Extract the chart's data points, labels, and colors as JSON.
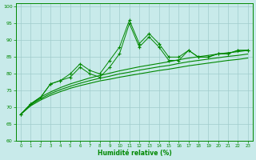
{
  "x": [
    0,
    1,
    2,
    3,
    4,
    5,
    6,
    7,
    8,
    9,
    10,
    11,
    12,
    13,
    14,
    15,
    16,
    17,
    18,
    19,
    20,
    21,
    22,
    23
  ],
  "line_jagged1": [
    68,
    71,
    73,
    77,
    78,
    80,
    83,
    81,
    80,
    84,
    88,
    96,
    89,
    92,
    89,
    85,
    85,
    87,
    85,
    85,
    86,
    86,
    87,
    87
  ],
  "line_jagged2": [
    68,
    71,
    73,
    77,
    78,
    79,
    82,
    80,
    79,
    82,
    86,
    95,
    88,
    91,
    88,
    84,
    84,
    87,
    85,
    85,
    86,
    86,
    87,
    87
  ],
  "smooth1_x": [
    0,
    1,
    2,
    3,
    4,
    5,
    6,
    7,
    8,
    9,
    10,
    11,
    12,
    13,
    14,
    15,
    16,
    17,
    18,
    19,
    20,
    21,
    22,
    23
  ],
  "smooth1_y": [
    68,
    70.5,
    72.2,
    73.6,
    74.7,
    75.7,
    76.5,
    77.2,
    77.9,
    78.4,
    79.0,
    79.5,
    80.0,
    80.5,
    81.0,
    81.4,
    81.9,
    82.4,
    82.8,
    83.2,
    83.6,
    84.0,
    84.3,
    84.7
  ],
  "smooth2_y": [
    68,
    70.8,
    72.6,
    74.1,
    75.3,
    76.3,
    77.2,
    78.0,
    78.7,
    79.3,
    80.0,
    80.5,
    81.1,
    81.6,
    82.1,
    82.5,
    83.1,
    83.6,
    84.0,
    84.4,
    84.8,
    85.2,
    85.5,
    85.9
  ],
  "smooth3_y": [
    68,
    71.1,
    73.1,
    74.6,
    75.9,
    77.0,
    77.9,
    78.8,
    79.5,
    80.2,
    80.9,
    81.5,
    82.1,
    82.6,
    83.1,
    83.6,
    84.2,
    84.7,
    85.1,
    85.5,
    85.9,
    86.3,
    86.6,
    87.0
  ],
  "line_color": "#008800",
  "bg_color": "#c8eaea",
  "grid_color": "#a0cccc",
  "xlabel": "Humidité relative (%)",
  "xlim": [
    -0.5,
    23.5
  ],
  "ylim": [
    60,
    101
  ],
  "yticks": [
    60,
    65,
    70,
    75,
    80,
    85,
    90,
    95,
    100
  ],
  "xticks": [
    0,
    1,
    2,
    3,
    4,
    5,
    6,
    7,
    8,
    9,
    10,
    11,
    12,
    13,
    14,
    15,
    16,
    17,
    18,
    19,
    20,
    21,
    22,
    23
  ]
}
